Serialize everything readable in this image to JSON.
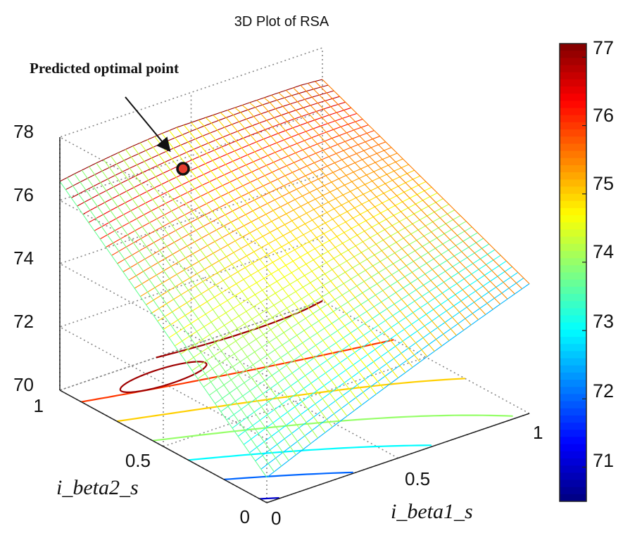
{
  "chart_data": {
    "type": "surface3d",
    "title": "3D Plot of RSA",
    "xlabel": "i_beta1_s",
    "ylabel": "i_beta2_s",
    "zlabel": "",
    "xlim": [
      0,
      1
    ],
    "ylim": [
      0,
      1
    ],
    "zlim": [
      70,
      78
    ],
    "x_ticks": [
      0,
      0.5,
      1
    ],
    "x_tick_labels": [
      "0",
      "0.5",
      "1"
    ],
    "y_ticks": [
      0,
      0.5,
      1
    ],
    "y_tick_labels": [
      "0",
      "0.5",
      "1"
    ],
    "z_ticks": [
      70,
      72,
      74,
      76,
      78
    ],
    "z_tick_labels": [
      "70",
      "72",
      "74",
      "76",
      "78"
    ],
    "surface_corners": {
      "x0_y0": 70.8,
      "x1_y0": 74.1,
      "x0_y1": 76.6,
      "x1_y1": 77.0,
      "optimum_ridge": 77.0
    },
    "contour_levels": [
      71,
      72,
      73,
      74,
      75,
      76,
      77
    ],
    "colorbar": {
      "range": [
        70.5,
        77.2
      ],
      "ticks": [
        71,
        72,
        73,
        74,
        75,
        76,
        77
      ],
      "tick_labels": [
        "71",
        "72",
        "73",
        "74",
        "75",
        "76",
        "77"
      ],
      "colormap": "jet"
    },
    "annotations": [
      {
        "text": "Predicted optimal point",
        "x": 0.3,
        "y": 0.9,
        "z": 77.0
      }
    ]
  },
  "colors": {
    "marker_fill": "#e53c2f",
    "marker_edge": "#111111",
    "arrow": "#111111",
    "grid": "#888888"
  }
}
